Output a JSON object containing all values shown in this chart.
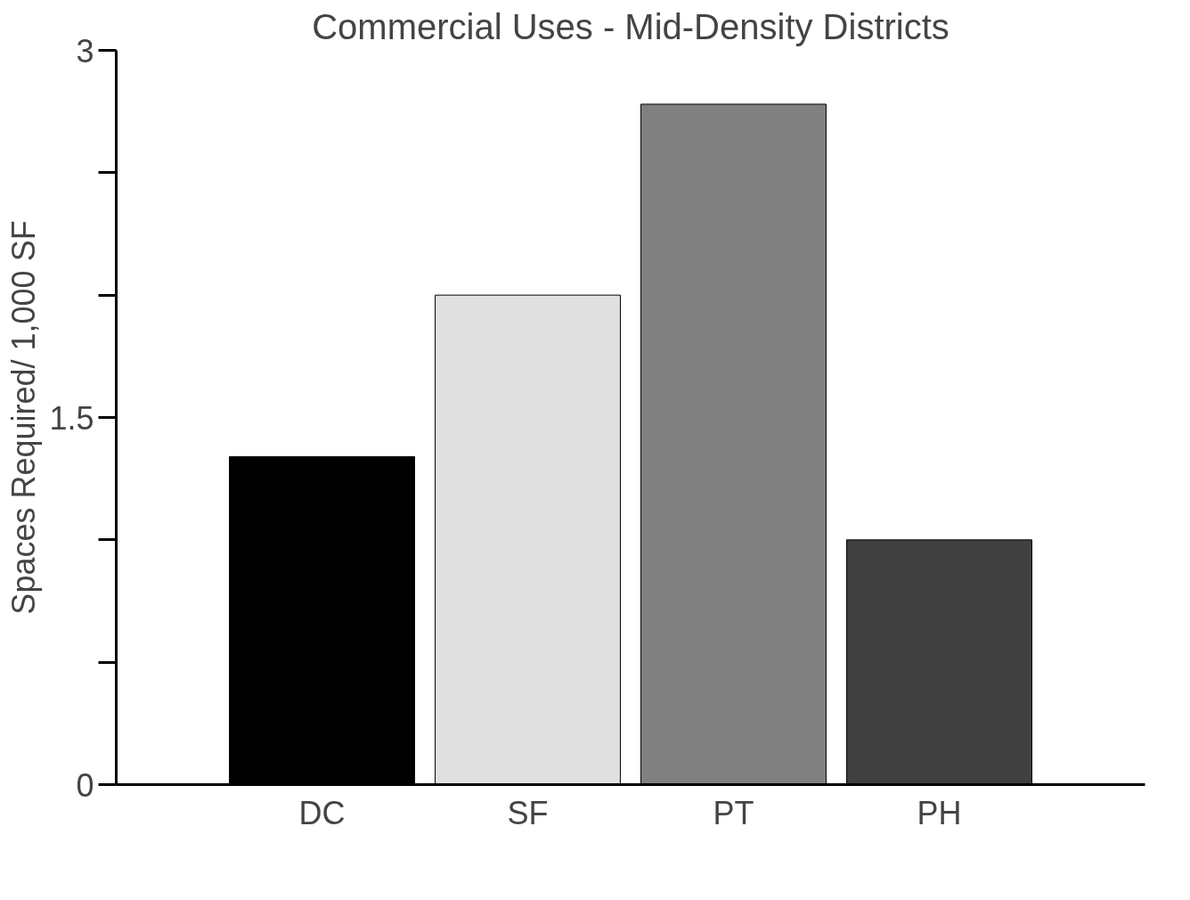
{
  "chart_data": {
    "type": "bar",
    "title": "Commercial Uses - Mid-Density Districts",
    "ylabel": "Spaces Required/ 1,000 SF",
    "categories": [
      "DC",
      "SF",
      "PT",
      "PH"
    ],
    "values": [
      1.34,
      2.0,
      2.78,
      1.0
    ],
    "colors": [
      "#000000",
      "#e0e0e0",
      "#808080",
      "#404040"
    ],
    "ylim": [
      0,
      3
    ],
    "yticks": [
      0,
      1.5,
      3
    ],
    "grid": false
  }
}
